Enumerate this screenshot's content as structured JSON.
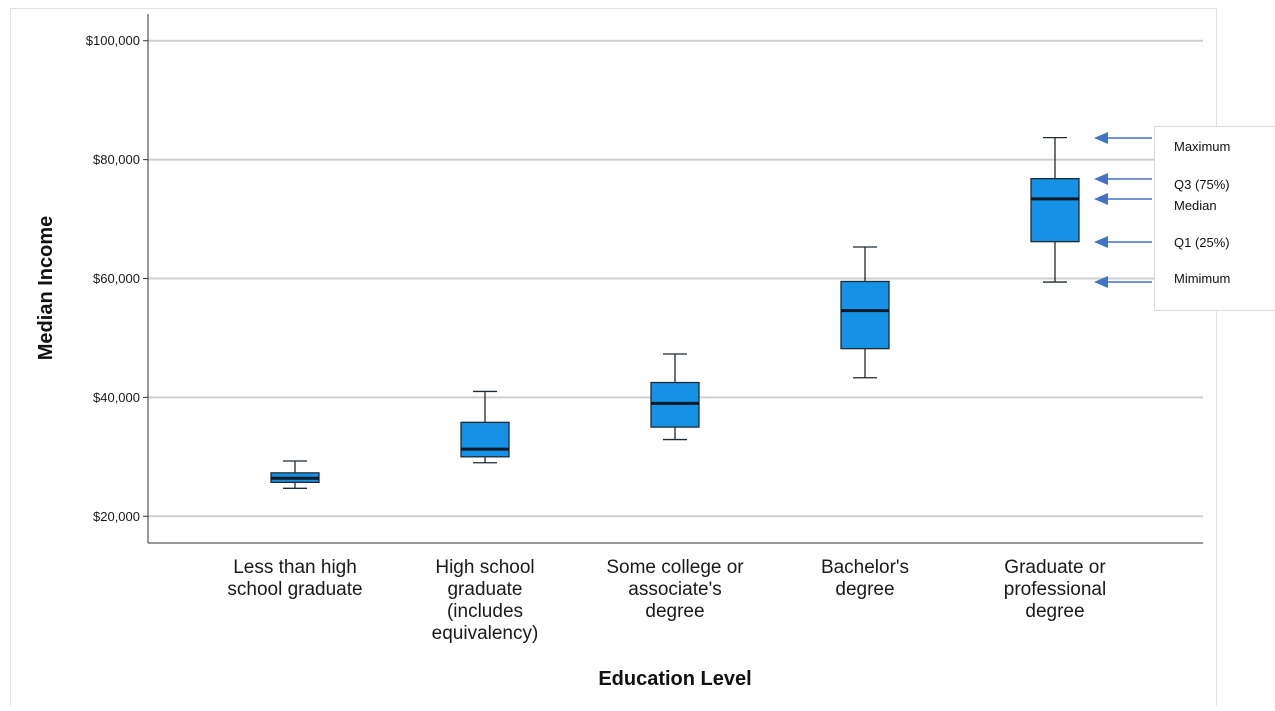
{
  "chart_data": {
    "type": "box",
    "xlabel": "Education Level",
    "ylabel": "Median Income",
    "ylim": [
      15500,
      104500
    ],
    "yticks": [
      20000,
      40000,
      60000,
      80000,
      100000
    ],
    "ytick_labels": [
      "$20,000",
      "$40,000",
      "$60,000",
      "$80,000",
      "$100,000"
    ],
    "grid": true,
    "categories": [
      [
        "Less than high",
        "school graduate"
      ],
      [
        "High school",
        "graduate",
        "(includes",
        "equivalency)"
      ],
      [
        "Some college or",
        "associate's",
        "degree"
      ],
      [
        "Bachelor's",
        "degree"
      ],
      [
        "Graduate or",
        "professional",
        "degree"
      ]
    ],
    "boxes": [
      {
        "min": 24700,
        "q1": 25700,
        "median": 26400,
        "q3": 27300,
        "max": 29300
      },
      {
        "min": 29000,
        "q1": 30000,
        "median": 31300,
        "q3": 35800,
        "max": 41000
      },
      {
        "min": 32900,
        "q1": 35000,
        "median": 39000,
        "q3": 42500,
        "max": 47300
      },
      {
        "min": 43300,
        "q1": 48200,
        "median": 54600,
        "q3": 59500,
        "max": 65300
      },
      {
        "min": 59400,
        "q1": 66200,
        "median": 73400,
        "q3": 76800,
        "max": 83700
      }
    ],
    "annotations": [
      {
        "label": "Maximum",
        "value": 83700
      },
      {
        "label": "Q3 (75%)",
        "value": 76800
      },
      {
        "label": "Median",
        "value": 73400
      },
      {
        "label": "Q1 (25%)",
        "value": 66200
      },
      {
        "label": "Mimimum",
        "value": 59400
      }
    ]
  },
  "colors": {
    "box_fill": "#1591e6",
    "box_stroke": "#1f2a33",
    "gridline": "#cfcfcf",
    "axis": "#333333",
    "arrow": "#4472c4",
    "frame": "#e3e3e3"
  }
}
